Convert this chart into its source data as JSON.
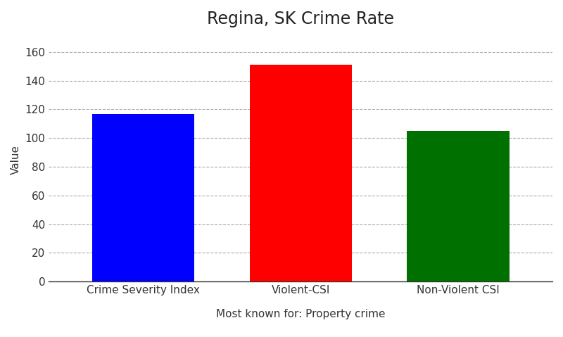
{
  "title": "Regina, SK Crime Rate",
  "categories": [
    "Crime Severity Index",
    "Violent-CSI",
    "Non-Violent CSI"
  ],
  "values": [
    117,
    151,
    105
  ],
  "bar_colors": [
    "#0000ff",
    "#ff0000",
    "#007000"
  ],
  "ylabel": "Value",
  "xlabel": "Most known for: Property crime",
  "ylim": [
    0,
    170
  ],
  "yticks": [
    0,
    20,
    40,
    60,
    80,
    100,
    120,
    140,
    160
  ],
  "grid_color": "#aaaaaa",
  "background_color": "#ffffff",
  "bar_width": 0.65,
  "title_fontsize": 17,
  "axis_label_fontsize": 11,
  "tick_fontsize": 11
}
